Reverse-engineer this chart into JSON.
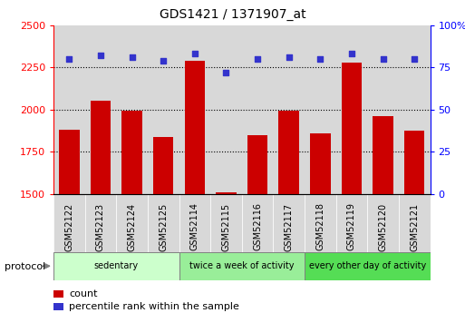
{
  "title": "GDS1421 / 1371907_at",
  "samples": [
    "GSM52122",
    "GSM52123",
    "GSM52124",
    "GSM52125",
    "GSM52114",
    "GSM52115",
    "GSM52116",
    "GSM52117",
    "GSM52118",
    "GSM52119",
    "GSM52120",
    "GSM52121"
  ],
  "counts": [
    1880,
    2055,
    1995,
    1840,
    2290,
    1510,
    1850,
    1995,
    1860,
    2280,
    1960,
    1875
  ],
  "percentiles": [
    80,
    82,
    81,
    79,
    83,
    72,
    80,
    81,
    80,
    83,
    80,
    80
  ],
  "ylim_left": [
    1500,
    2500
  ],
  "ylim_right": [
    0,
    100
  ],
  "yticks_left": [
    1500,
    1750,
    2000,
    2250,
    2500
  ],
  "yticks_right": [
    0,
    25,
    50,
    75,
    100
  ],
  "bar_color": "#cc0000",
  "dot_color": "#3333cc",
  "groups": [
    {
      "label": "sedentary",
      "start": 0,
      "end": 4,
      "color": "#ccffcc"
    },
    {
      "label": "twice a week of activity",
      "start": 4,
      "end": 8,
      "color": "#99ee99"
    },
    {
      "label": "every other day of activity",
      "start": 8,
      "end": 12,
      "color": "#55dd55"
    }
  ],
  "protocol_label": "protocol",
  "legend_count": "count",
  "legend_percentile": "percentile rank within the sample",
  "cell_bg": "#d8d8d8",
  "plot_bg": "#ffffff",
  "grid_dotted_color": "#000000",
  "bar_bottom": 1500
}
